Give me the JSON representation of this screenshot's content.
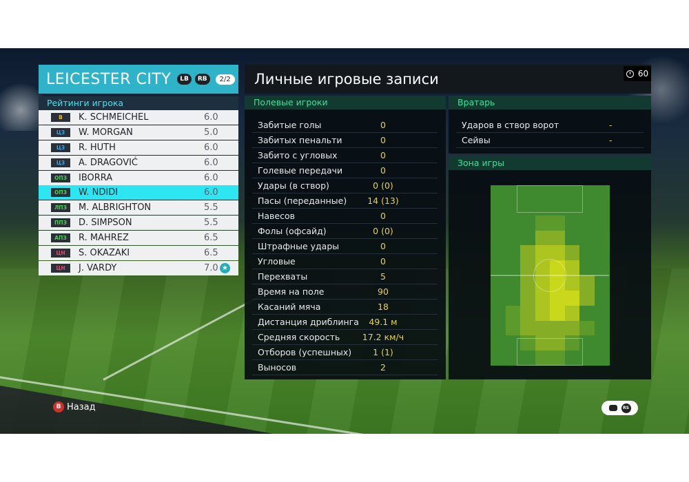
{
  "team": {
    "name": "LEICESTER CITY",
    "lb": "LB",
    "rb": "RB",
    "page": "2/2",
    "ratings_title": "Рейтинги игрока"
  },
  "players": [
    {
      "pos": "В",
      "name": "K. SCHMEICHEL",
      "rating": "6.0",
      "pos_color": "#e8b81c"
    },
    {
      "pos": "ЦЗ",
      "name": "W. MORGAN",
      "rating": "5.0",
      "pos_color": "#3aa2e6"
    },
    {
      "pos": "ЦЗ",
      "name": "R. HUTH",
      "rating": "6.0",
      "pos_color": "#3aa2e6"
    },
    {
      "pos": "ЦЗ",
      "name": "A. DRAGOVIĆ",
      "rating": "6.0",
      "pos_color": "#3aa2e6"
    },
    {
      "pos": "ОПЗ",
      "name": "IBORRA",
      "rating": "6.0",
      "pos_color": "#4ccf5a"
    },
    {
      "pos": "ОПЗ",
      "name": "W. NDIDI",
      "rating": "6.0",
      "pos_color": "#4ccf5a",
      "selected": true
    },
    {
      "pos": "ЛПЗ",
      "name": "M. ALBRIGHTON",
      "rating": "5.5",
      "pos_color": "#4ccf5a"
    },
    {
      "pos": "ППЗ",
      "name": "D. SIMPSON",
      "rating": "5.5",
      "pos_color": "#4ccf5a"
    },
    {
      "pos": "АПЗ",
      "name": "R. MAHREZ",
      "rating": "6.5",
      "pos_color": "#4ccf5a"
    },
    {
      "pos": "ЦН",
      "name": "S. OKAZAKI",
      "rating": "6.5",
      "pos_color": "#e8466a"
    },
    {
      "pos": "ЦН",
      "name": "J. VARDY",
      "rating": "7.0",
      "pos_color": "#e8466a",
      "star": true
    }
  ],
  "main": {
    "title": "Личные игровые записи",
    "timer": "60"
  },
  "field_players": {
    "title": "Полевые игроки",
    "stats": [
      {
        "label": "Забитые голы",
        "value": "0"
      },
      {
        "label": "Забитых пенальти",
        "value": "0"
      },
      {
        "label": "Забито с угловых",
        "value": "0"
      },
      {
        "label": "Голевые передачи",
        "value": "0"
      },
      {
        "label": "Удары (в створ)",
        "value": "0 (0)"
      },
      {
        "label": "Пасы (переданные)",
        "value": "14 (13)"
      },
      {
        "label": "Навесов",
        "value": "0"
      },
      {
        "label": "Фолы (офсайд)",
        "value": "0 (0)"
      },
      {
        "label": "Штрафные удары",
        "value": "0"
      },
      {
        "label": "Угловые",
        "value": "0"
      },
      {
        "label": "Перехваты",
        "value": "5"
      },
      {
        "label": "Время на поле",
        "value": "90"
      },
      {
        "label": "Касаний мяча",
        "value": "18"
      },
      {
        "label": "Дистанция дриблинга",
        "value": "49.1 м"
      },
      {
        "label": "Средняя скорость",
        "value": "17.2 км/ч"
      },
      {
        "label": "Отборов (успешных)",
        "value": "1 (1)"
      },
      {
        "label": "Выносов",
        "value": "2"
      }
    ]
  },
  "goalkeeper": {
    "title": "Вратарь",
    "stats": [
      {
        "label": "Ударов в створ ворот",
        "value": "-"
      },
      {
        "label": "Сейвы",
        "value": "-"
      }
    ]
  },
  "zone": {
    "title": "Зона игры"
  },
  "footer": {
    "back_label": "Назад",
    "b_glyph": "B",
    "rs_glyph": "RS"
  },
  "colors": {
    "accent": "#2fb3c8",
    "selected_row": "#2de6f2",
    "stat_value": "#e6d34a",
    "section_title": "#35e49a"
  }
}
